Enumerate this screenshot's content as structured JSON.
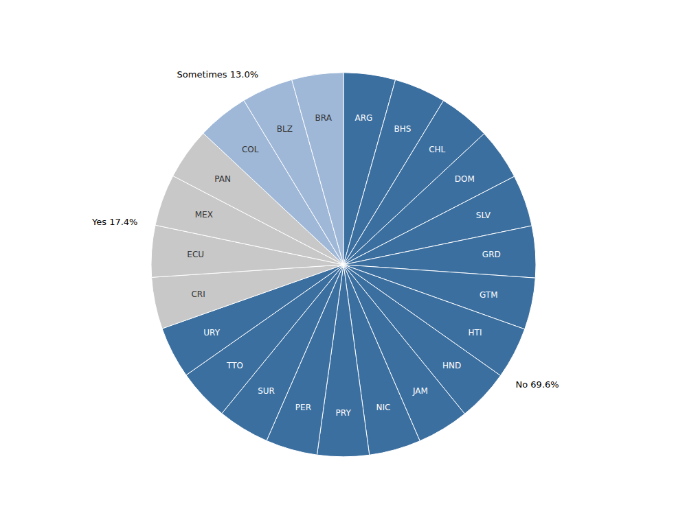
{
  "chart_data": {
    "type": "pie",
    "series": [
      {
        "annotation": "No 69.6%",
        "color": "#3B6FA0",
        "label_color": "white",
        "categories": [
          "ARG",
          "BHS",
          "CHL",
          "DOM",
          "SLV",
          "GRD",
          "GTM",
          "HTI",
          "HND",
          "JAM",
          "NIC",
          "PRY",
          "PER",
          "SUR",
          "TTO",
          "URY"
        ],
        "values": [
          4.35,
          4.35,
          4.35,
          4.35,
          4.35,
          4.35,
          4.35,
          4.35,
          4.35,
          4.35,
          4.35,
          4.35,
          4.35,
          4.35,
          4.35,
          4.35
        ]
      },
      {
        "annotation": "Yes 17.4%",
        "color": "#C8C8C8",
        "label_color": "#333333",
        "categories": [
          "CRI",
          "ECU",
          "MEX",
          "PAN"
        ],
        "values": [
          4.35,
          4.35,
          4.35,
          4.35
        ]
      },
      {
        "annotation": "Sometimes 13.0%",
        "color": "#9FB8D8",
        "label_color": "#333333",
        "categories": [
          "COL",
          "BLZ",
          "BRA"
        ],
        "values": [
          4.333333333333333,
          4.333333333333333,
          4.333333333333333
        ]
      }
    ]
  }
}
